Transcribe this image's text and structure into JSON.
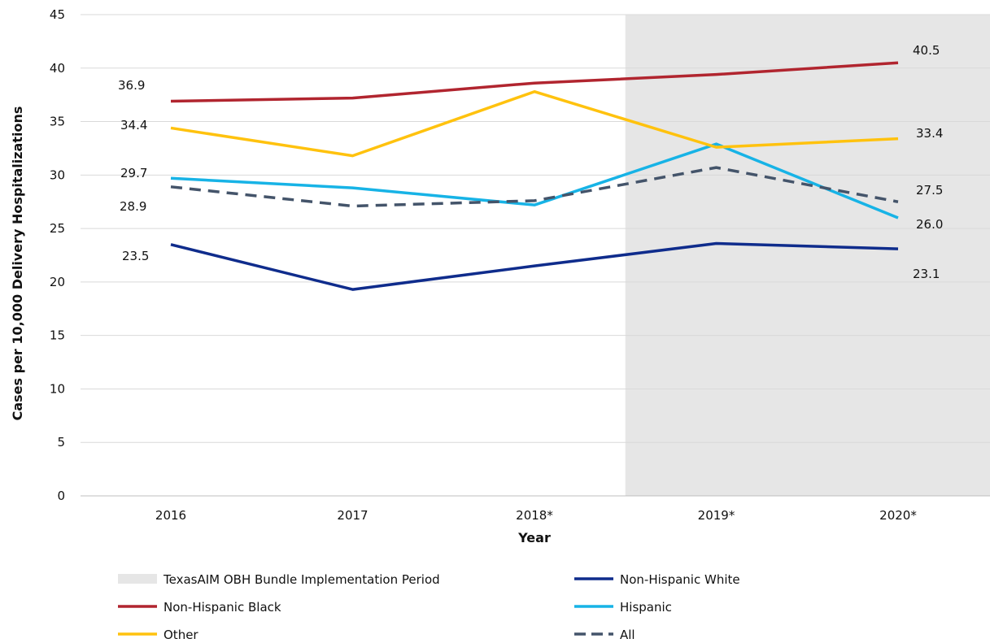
{
  "chart_data": {
    "type": "line",
    "title": "",
    "xlabel": "Year",
    "ylabel": "Cases per 10,000 Delivery Hospitalizations",
    "categories": [
      "2016",
      "2017",
      "2018*",
      "2019*",
      "2020*"
    ],
    "ylim": [
      0,
      45
    ],
    "yticks": [
      0,
      5,
      10,
      15,
      20,
      25,
      30,
      35,
      40,
      45
    ],
    "grid": true,
    "legend_position": "bottom",
    "shaded_region": {
      "name": "TexasAIM OBH Bundle Implementation Period",
      "from_category": "2018*",
      "to_category": "2020*",
      "color": "#e6e6e6"
    },
    "series": [
      {
        "name": "Non-Hispanic White",
        "values": [
          23.5,
          19.3,
          21.5,
          23.6,
          23.1
        ],
        "color": "#0f2c8c",
        "dashed": false,
        "labels": [
          {
            "index": 0,
            "text": "23.5",
            "side": "start"
          },
          {
            "index": 4,
            "text": "23.1",
            "side": "end"
          }
        ]
      },
      {
        "name": "Non-Hispanic Black",
        "values": [
          36.9,
          37.2,
          38.6,
          39.4,
          40.5
        ],
        "color": "#b1252f",
        "dashed": false,
        "labels": [
          {
            "index": 0,
            "text": "36.9",
            "side": "start"
          },
          {
            "index": 4,
            "text": "40.5",
            "side": "end"
          }
        ]
      },
      {
        "name": "Hispanic",
        "values": [
          29.7,
          28.8,
          27.2,
          32.9,
          26.0
        ],
        "color": "#17b3e6",
        "dashed": false,
        "labels": [
          {
            "index": 0,
            "text": "29.7",
            "side": "start"
          },
          {
            "index": 4,
            "text": "26.0",
            "side": "end"
          }
        ]
      },
      {
        "name": "Other",
        "values": [
          34.4,
          31.8,
          37.8,
          32.6,
          33.4
        ],
        "color": "#ffc20e",
        "dashed": false,
        "labels": [
          {
            "index": 0,
            "text": "34.4",
            "side": "start"
          },
          {
            "index": 4,
            "text": "33.4",
            "side": "end"
          }
        ]
      },
      {
        "name": "All",
        "values": [
          28.9,
          27.1,
          27.6,
          30.7,
          27.5
        ],
        "color": "#44546a",
        "dashed": true,
        "labels": [
          {
            "index": 0,
            "text": "28.9",
            "side": "start"
          },
          {
            "index": 4,
            "text": "27.5",
            "side": "end"
          }
        ]
      }
    ],
    "legend": [
      {
        "label": "TexasAIM OBH Bundle Implementation Period",
        "kind": "box",
        "color": "#e6e6e6"
      },
      {
        "label": "Non-Hispanic White",
        "kind": "line",
        "color": "#0f2c8c",
        "dashed": false
      },
      {
        "label": "Non-Hispanic Black",
        "kind": "line",
        "color": "#b1252f",
        "dashed": false
      },
      {
        "label": "Hispanic",
        "kind": "line",
        "color": "#17b3e6",
        "dashed": false
      },
      {
        "label": "Other",
        "kind": "line",
        "color": "#ffc20e",
        "dashed": false
      },
      {
        "label": "All",
        "kind": "line",
        "color": "#44546a",
        "dashed": true
      }
    ]
  }
}
